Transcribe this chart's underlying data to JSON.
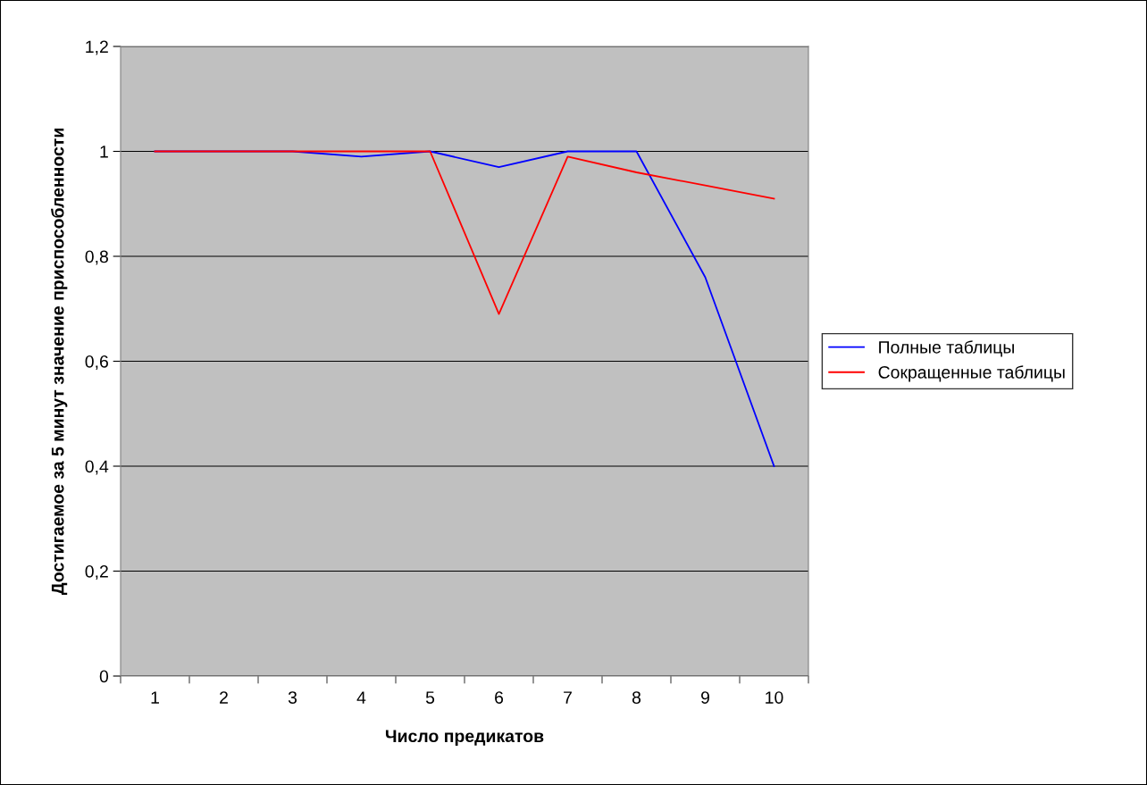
{
  "chart_data": {
    "type": "line",
    "xlabel": "Число предикатов",
    "ylabel": "Достигаемое за 5 минут значение приспособленности",
    "categories": [
      "1",
      "2",
      "3",
      "4",
      "5",
      "6",
      "7",
      "8",
      "9",
      "10"
    ],
    "series": [
      {
        "name": "Полные таблицы",
        "color": "#0000ff",
        "values": [
          1,
          1,
          1,
          0.99,
          1,
          0.97,
          1,
          1,
          0.76,
          0.4
        ]
      },
      {
        "name": "Сокращенные таблицы",
        "color": "#ff0000",
        "values": [
          1,
          1,
          1,
          1,
          1,
          0.69,
          0.99,
          0.96,
          0.935,
          0.91
        ]
      }
    ],
    "ylim": [
      0,
      1.2
    ],
    "yticks": [
      0,
      {
        "value": 0.2,
        "label": "0,2"
      },
      {
        "value": 0.4,
        "label": "0,4"
      },
      {
        "value": 0.6,
        "label": "0,6"
      },
      {
        "value": 0.8,
        "label": "0,8"
      },
      1,
      {
        "value": 1.2,
        "label": "1,2"
      }
    ],
    "grid": "y",
    "legend": "right",
    "marker": "none",
    "line_style": "solid"
  }
}
